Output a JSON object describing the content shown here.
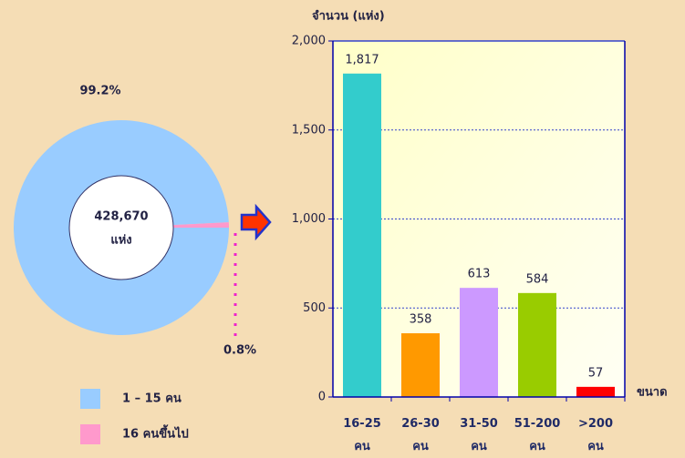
{
  "chart_data": [
    {
      "type": "pie",
      "categories": [
        "1 – 15 คน",
        "16 คนขึ้นไป"
      ],
      "values": [
        99.2,
        0.8
      ],
      "value_labels": [
        "99.2%",
        "0.8%"
      ],
      "colors": [
        "#99ccff",
        "#ff99cc"
      ],
      "center_lines": [
        "428,670",
        "แห่ง"
      ]
    },
    {
      "type": "bar",
      "title": "จำนวน (แห่ง)",
      "x_label": "ขนาด",
      "categories": [
        "16-25 คน",
        "26-30 คน",
        "31-50 คน",
        "51-200 คน",
        ">200 คน"
      ],
      "values": [
        1817,
        358,
        613,
        584,
        57
      ],
      "value_labels": [
        "1,817",
        "358",
        "613",
        "584",
        "57"
      ],
      "colors": [
        "#33cccc",
        "#ff9900",
        "#cc99ff",
        "#99cc00",
        "#ff0000"
      ],
      "ylim": [
        0,
        2000
      ],
      "yticks": [
        0,
        500,
        {
          "value": 1000,
          "label": "1,000"
        },
        {
          "value": 1500,
          "label": "1,500"
        },
        {
          "value": 2000,
          "label": "2,000"
        }
      ],
      "grid": true
    }
  ]
}
